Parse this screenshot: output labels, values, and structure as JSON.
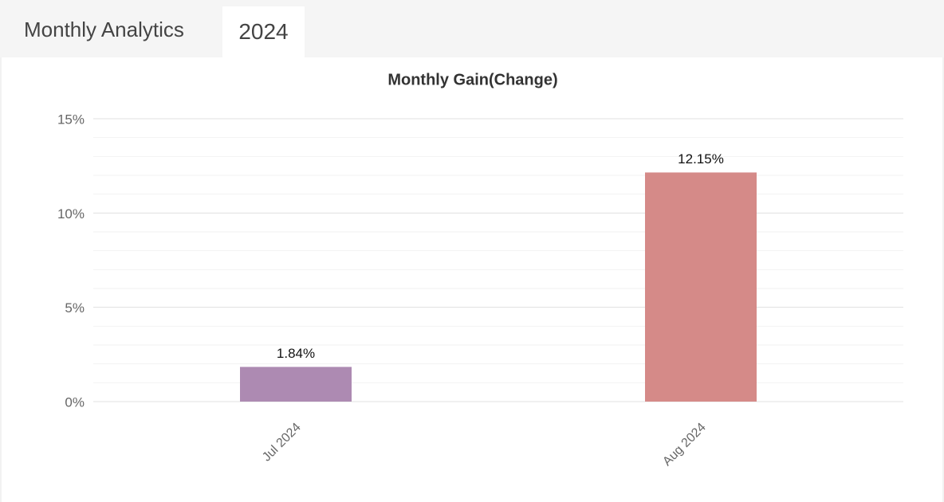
{
  "header": {
    "title": "Monthly Analytics",
    "tab": "2024"
  },
  "chart_data": {
    "type": "bar",
    "title": "Monthly Gain(Change)",
    "categories": [
      "Jul 2024",
      "Aug 2024"
    ],
    "values": [
      1.84,
      12.15
    ],
    "value_labels": [
      "1.84%",
      "12.15%"
    ],
    "colors": [
      "#ad8ab2",
      "#d58a88"
    ],
    "ylim": [
      0,
      15
    ],
    "yticks": [
      {
        "value": 0,
        "label": "0%"
      },
      {
        "value": 5,
        "label": "5%"
      },
      {
        "value": 10,
        "label": "10%"
      },
      {
        "value": 15,
        "label": "15%"
      }
    ],
    "minor_yticks": [
      1,
      2,
      3,
      4,
      6,
      7,
      8,
      9,
      11,
      12,
      13,
      14
    ],
    "grid": true
  }
}
